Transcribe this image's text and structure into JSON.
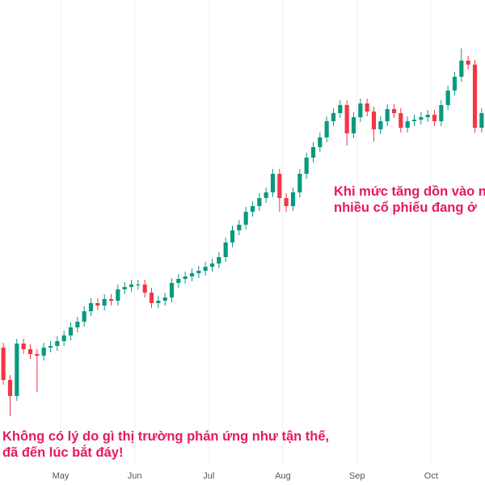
{
  "chart_data": {
    "type": "candlestick",
    "up_color": "#089981",
    "down_color": "#f23645",
    "grid": true,
    "xlim": [
      0,
      72
    ],
    "ylim": [
      0,
      600
    ],
    "xticks": [
      {
        "value": 9,
        "label": "May"
      },
      {
        "value": 20,
        "label": "Jun"
      },
      {
        "value": 31,
        "label": "Jul"
      },
      {
        "value": 42,
        "label": "Aug"
      },
      {
        "value": 53,
        "label": "Sep"
      },
      {
        "value": 64,
        "label": "Oct"
      }
    ],
    "open": [
      170,
      130,
      110,
      175,
      168,
      162,
      160,
      170,
      172,
      178,
      185,
      195,
      202,
      215,
      225,
      222,
      230,
      228,
      242,
      245,
      248,
      248,
      238,
      225,
      228,
      232,
      250,
      255,
      258,
      262,
      265,
      270,
      274,
      282,
      300,
      315,
      322,
      338,
      345,
      355,
      362,
      385,
      355,
      345,
      362,
      385,
      405,
      418,
      430,
      450,
      460,
      470,
      435,
      455,
      472,
      462,
      440,
      450,
      465,
      460,
      442,
      450,
      452,
      455,
      458,
      450,
      470,
      488,
      505,
      525,
      520,
      442
    ],
    "high": [
      176,
      136,
      181,
      181,
      174,
      168,
      176,
      178,
      184,
      191,
      201,
      208,
      221,
      231,
      231,
      236,
      236,
      248,
      251,
      254,
      254,
      254,
      244,
      234,
      238,
      256,
      261,
      264,
      268,
      271,
      276,
      280,
      288,
      306,
      321,
      328,
      344,
      351,
      361,
      368,
      391,
      391,
      361,
      368,
      391,
      411,
      424,
      436,
      456,
      466,
      476,
      476,
      461,
      478,
      478,
      468,
      456,
      471,
      471,
      466,
      456,
      458,
      461,
      464,
      464,
      476,
      494,
      511,
      540,
      531,
      526,
      466
    ],
    "low": [
      124,
      85,
      104,
      162,
      156,
      115,
      154,
      164,
      166,
      172,
      179,
      189,
      196,
      209,
      216,
      216,
      222,
      222,
      236,
      239,
      242,
      232,
      219,
      219,
      222,
      226,
      244,
      249,
      252,
      256,
      259,
      264,
      268,
      276,
      294,
      309,
      316,
      332,
      339,
      349,
      356,
      338,
      338,
      339,
      356,
      379,
      399,
      412,
      424,
      444,
      454,
      420,
      429,
      449,
      456,
      425,
      434,
      444,
      454,
      436,
      436,
      444,
      446,
      449,
      444,
      444,
      464,
      482,
      499,
      514,
      436,
      436
    ],
    "close": [
      130,
      110,
      175,
      168,
      162,
      160,
      170,
      172,
      178,
      185,
      195,
      202,
      215,
      225,
      222,
      230,
      228,
      242,
      245,
      248,
      248,
      238,
      225,
      228,
      232,
      250,
      255,
      258,
      262,
      265,
      270,
      274,
      282,
      300,
      315,
      322,
      338,
      345,
      355,
      362,
      385,
      355,
      345,
      362,
      385,
      405,
      418,
      430,
      450,
      460,
      470,
      435,
      455,
      472,
      462,
      440,
      450,
      465,
      460,
      442,
      450,
      452,
      455,
      458,
      450,
      470,
      488,
      505,
      525,
      520,
      442,
      460
    ],
    "annotations": [
      "Khi mức tăng dồn vào n",
      "nhiều cổ phiếu đang ở",
      "Không có lý do gì thị trường phản ứng như tận thế,",
      "đã đến lúc bắt đáy!"
    ]
  }
}
